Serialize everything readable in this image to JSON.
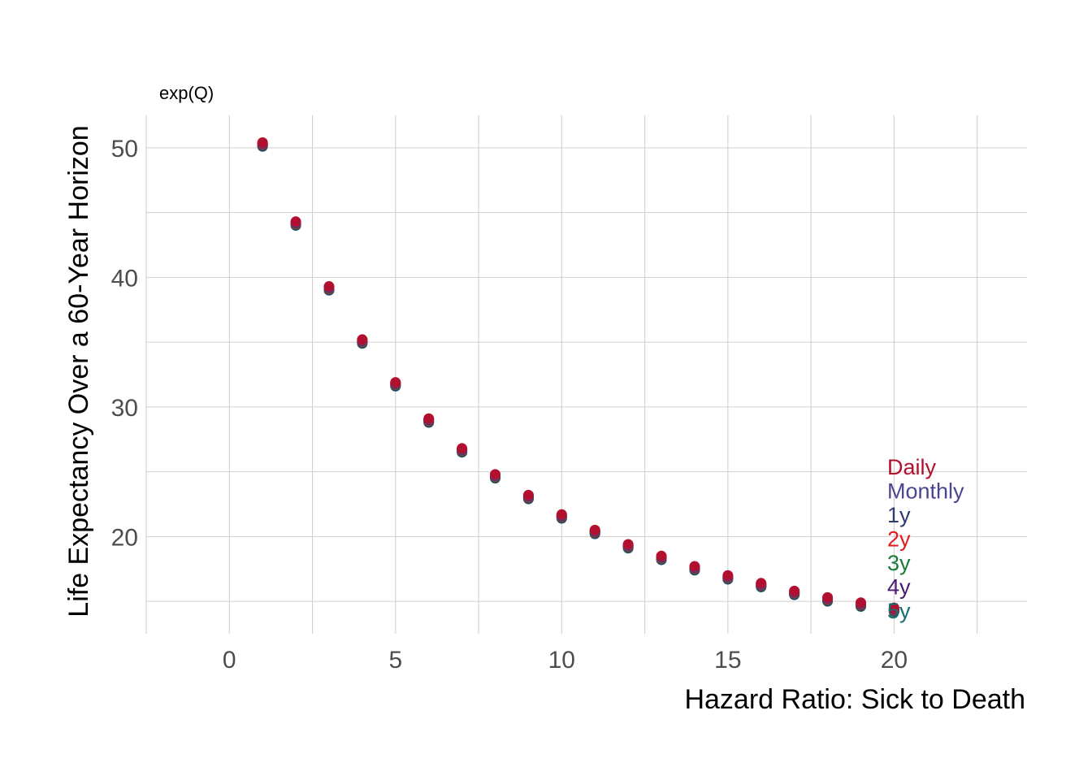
{
  "chart_data": {
    "type": "scatter",
    "title": "",
    "subtitle": "exp(Q)",
    "xlabel": "Hazard Ratio: Sick to Death",
    "ylabel": "Life Expectancy Over a 60-Year Horizon",
    "xlim": [
      -2.5,
      24
    ],
    "ylim": [
      12.5,
      52.5
    ],
    "x_ticks": [
      0,
      5,
      10,
      15,
      20
    ],
    "y_ticks": [
      20,
      30,
      40,
      50
    ],
    "grid": true,
    "legend_position": "inside-right (direct labels)",
    "x": [
      1,
      2,
      3,
      4,
      5,
      6,
      7,
      8,
      9,
      10,
      11,
      12,
      13,
      14,
      15,
      16,
      17,
      18,
      19,
      20
    ],
    "series": [
      {
        "name": "5y",
        "color": "#176d6d",
        "values": [
          50.1,
          44.0,
          39.0,
          34.9,
          31.6,
          28.8,
          26.5,
          24.5,
          22.9,
          21.4,
          20.2,
          19.1,
          18.2,
          17.4,
          16.7,
          16.1,
          15.5,
          15.0,
          14.6,
          14.2
        ]
      },
      {
        "name": "4y",
        "color": "#4b1a70",
        "values": [
          50.15,
          44.05,
          39.05,
          34.95,
          31.65,
          28.85,
          26.55,
          24.55,
          22.95,
          21.45,
          20.25,
          19.15,
          18.25,
          17.45,
          16.75,
          16.15,
          15.55,
          15.05,
          14.65,
          14.25
        ]
      },
      {
        "name": "3y",
        "color": "#1b7a3a",
        "values": [
          50.2,
          44.1,
          39.1,
          35.0,
          31.7,
          28.9,
          26.6,
          24.6,
          23.0,
          21.5,
          20.3,
          19.2,
          18.3,
          17.5,
          16.8,
          16.2,
          15.6,
          15.1,
          14.7,
          14.3
        ]
      },
      {
        "name": "2y",
        "color": "#e31a1c",
        "values": [
          50.25,
          44.15,
          39.15,
          35.05,
          31.75,
          28.95,
          26.65,
          24.65,
          23.05,
          21.55,
          20.35,
          19.25,
          18.35,
          17.55,
          16.85,
          16.25,
          15.65,
          15.15,
          14.75,
          14.35
        ]
      },
      {
        "name": "1y",
        "color": "#2e3a6e",
        "values": [
          50.3,
          44.2,
          39.2,
          35.1,
          31.8,
          29.0,
          26.7,
          24.7,
          23.1,
          21.6,
          20.4,
          19.3,
          18.4,
          17.6,
          16.9,
          16.3,
          15.7,
          15.2,
          14.8,
          14.4
        ]
      },
      {
        "name": "Monthly",
        "color": "#4c4592",
        "values": [
          50.35,
          44.25,
          39.25,
          35.15,
          31.85,
          29.05,
          26.75,
          24.75,
          23.15,
          21.65,
          20.45,
          19.35,
          18.45,
          17.65,
          16.95,
          16.35,
          15.75,
          15.25,
          14.85,
          14.45
        ]
      },
      {
        "name": "Daily",
        "color": "#b2102f",
        "values": [
          50.4,
          44.3,
          39.3,
          35.2,
          31.9,
          29.1,
          26.8,
          24.8,
          23.2,
          21.7,
          20.5,
          19.4,
          18.5,
          17.7,
          17.0,
          16.4,
          15.8,
          15.3,
          14.9,
          14.5
        ]
      }
    ],
    "legend_order": [
      "Daily",
      "Monthly",
      "1y",
      "2y",
      "3y",
      "4y",
      "5y"
    ]
  }
}
